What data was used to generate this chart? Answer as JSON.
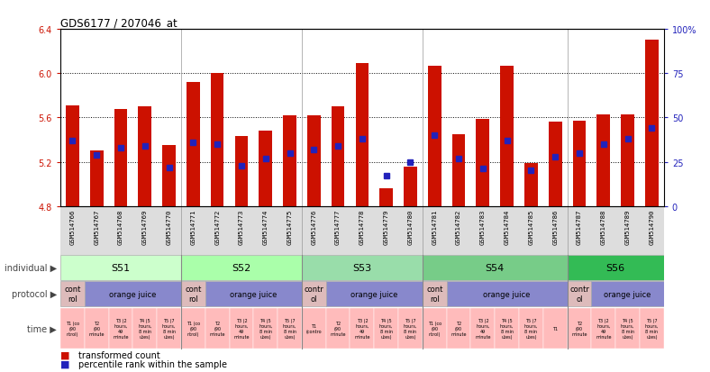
{
  "title": "GDS6177 / 207046_at",
  "samples": [
    "GSM514766",
    "GSM514767",
    "GSM514768",
    "GSM514769",
    "GSM514770",
    "GSM514771",
    "GSM514772",
    "GSM514773",
    "GSM514774",
    "GSM514775",
    "GSM514776",
    "GSM514777",
    "GSM514778",
    "GSM514779",
    "GSM514780",
    "GSM514781",
    "GSM514782",
    "GSM514783",
    "GSM514784",
    "GSM514785",
    "GSM514786",
    "GSM514787",
    "GSM514788",
    "GSM514789",
    "GSM514790"
  ],
  "red_values": [
    5.71,
    5.3,
    5.68,
    5.7,
    5.35,
    5.92,
    6.0,
    5.43,
    5.48,
    5.62,
    5.62,
    5.7,
    6.09,
    4.96,
    5.16,
    6.07,
    5.45,
    5.59,
    6.07,
    5.19,
    5.56,
    5.57,
    5.63,
    5.63,
    6.3
  ],
  "blue_percentiles": [
    37,
    29,
    33,
    34,
    22,
    36,
    35,
    23,
    27,
    30,
    32,
    34,
    38,
    17,
    25,
    40,
    27,
    21,
    37,
    20,
    28,
    30,
    35,
    38,
    44
  ],
  "bar_color": "#cc1100",
  "dot_color": "#2222bb",
  "bar_bottom": 4.8,
  "ylim_left": [
    4.8,
    6.4
  ],
  "ylim_right": [
    0,
    100
  ],
  "yticks_left": [
    4.8,
    5.2,
    5.6,
    6.0,
    6.4
  ],
  "ytick_labels_left": [
    "4.8",
    "5.2",
    "5.6",
    "6.0",
    "6.4"
  ],
  "ytick_labels_right": [
    "0",
    "25",
    "50",
    "75",
    "100%"
  ],
  "hlines": [
    5.2,
    5.6,
    6.0
  ],
  "group_boundaries": [
    5,
    10,
    15,
    21
  ],
  "individuals": [
    {
      "label": "S51",
      "start": 0,
      "end": 5,
      "color": "#ccffcc"
    },
    {
      "label": "S52",
      "start": 5,
      "end": 10,
      "color": "#aaffaa"
    },
    {
      "label": "S53",
      "start": 10,
      "end": 15,
      "color": "#99ddaa"
    },
    {
      "label": "S54",
      "start": 15,
      "end": 21,
      "color": "#77cc88"
    },
    {
      "label": "S56",
      "start": 21,
      "end": 25,
      "color": "#33bb55"
    }
  ],
  "protocols": [
    {
      "label": "cont\nrol",
      "start": 0,
      "end": 1,
      "color": "#ddbbbb"
    },
    {
      "label": "orange juice",
      "start": 1,
      "end": 5,
      "color": "#8888cc"
    },
    {
      "label": "cont\nrol",
      "start": 5,
      "end": 6,
      "color": "#ddbbbb"
    },
    {
      "label": "orange juice",
      "start": 6,
      "end": 10,
      "color": "#8888cc"
    },
    {
      "label": "contr\nol",
      "start": 10,
      "end": 11,
      "color": "#ddbbbb"
    },
    {
      "label": "orange juice",
      "start": 11,
      "end": 15,
      "color": "#8888cc"
    },
    {
      "label": "cont\nrol",
      "start": 15,
      "end": 16,
      "color": "#ddbbbb"
    },
    {
      "label": "orange juice",
      "start": 16,
      "end": 21,
      "color": "#8888cc"
    },
    {
      "label": "contr\nol",
      "start": 21,
      "end": 22,
      "color": "#ddbbbb"
    },
    {
      "label": "orange juice",
      "start": 22,
      "end": 25,
      "color": "#8888cc"
    }
  ],
  "time_labels_per_sample": [
    "T1 (co\n(90\nntrol)",
    "T2\n(90\nminute",
    "T3 (2\nhours,\n49\nminute",
    "T4 (5\nhours,\n8 min\nutes)",
    "T5 (7\nhours,\n8 min\nutes)",
    "T1 (co\n(90\nntrol)",
    "T2\n(90\nminute",
    "T3 (2\nhours,\n49\nminute",
    "T4 (5\nhours,\n8 min\nutes)",
    "T5 (7\nhours,\n8 min\nutes)",
    "T1\n(contro",
    "T2\n(90\nminute",
    "T3 (2\nhours,\n49\nminute",
    "T4 (5\nhours,\n8 min\nutes)",
    "T5 (7\nhours,\n8 min\nutes)",
    "T1 (co\n(90\nntrol)",
    "T2\n(90\nminute",
    "T3 (2\nhours,\n49\nminute",
    "T4 (5\nhours,\n8 min\nutes)",
    "T5 (7\nhours,\n8 min\nutes)",
    "T1",
    "T2\n(90\nminute",
    "T3 (2\nhours,\n49\nminute",
    "T4 (5\nhours,\n8 min\nutes)",
    "T5 (7\nhours,\n8 min\nutes)"
  ],
  "time_bg": "#ffbbbb",
  "sample_area_bg": "#dddddd",
  "legend_red": "transformed count",
  "legend_blue": "percentile rank within the sample"
}
